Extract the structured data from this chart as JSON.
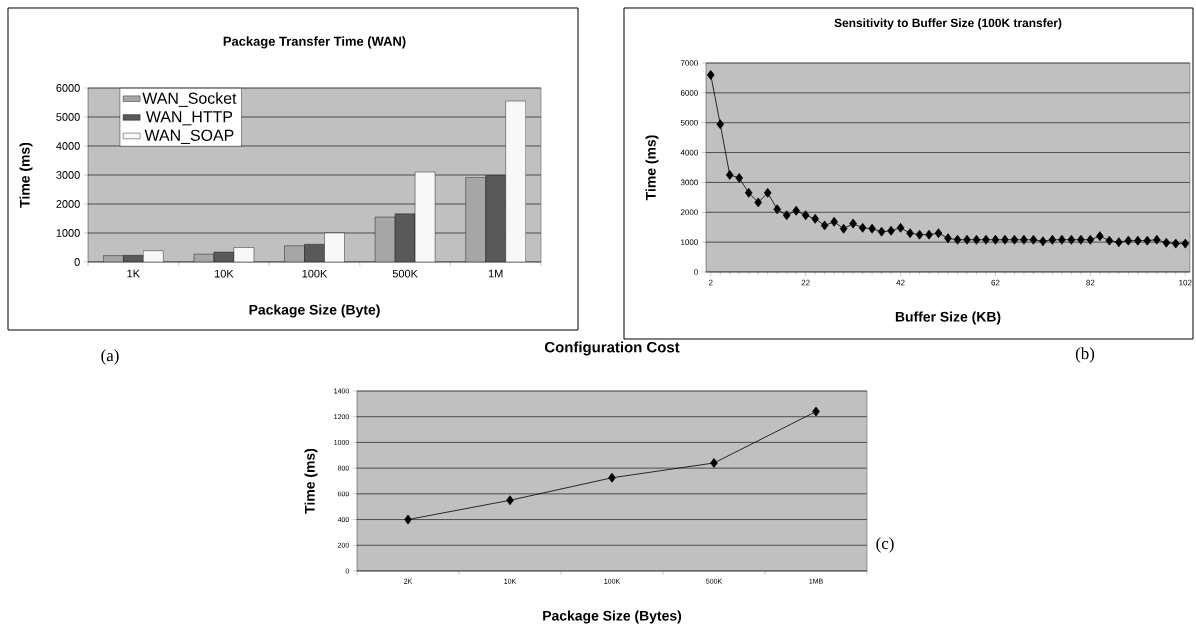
{
  "chart_data": [
    {
      "type": "bar",
      "title": "Package Transfer Time (WAN)",
      "xlabel": "Package Size (Byte)",
      "ylabel": "Time (ms)",
      "categories": [
        "1K",
        "10K",
        "100K",
        "500K",
        "1M"
      ],
      "series": [
        {
          "name": "WAN_Socket",
          "color": "#a6a6a6",
          "values": [
            220,
            270,
            560,
            1550,
            2920
          ]
        },
        {
          "name": "WAN_HTTP",
          "color": "#595959",
          "values": [
            230,
            340,
            610,
            1660,
            2980
          ]
        },
        {
          "name": "WAN_SOAP",
          "color": "#f8f8f8",
          "values": [
            390,
            500,
            1000,
            3100,
            5550
          ]
        }
      ],
      "ylim": [
        0,
        6000
      ],
      "yticks": [
        0,
        1000,
        2000,
        3000,
        4000,
        5000,
        6000
      ],
      "grid": "y",
      "legend": "top left",
      "annotations": [
        "(a)"
      ]
    },
    {
      "type": "line",
      "title": "Sensitivity to Buffer Size (100K transfer)",
      "xlabel": "Buffer Size (KB)",
      "ylabel": "Time (ms)",
      "x": [
        2,
        4,
        6,
        8,
        10,
        12,
        14,
        16,
        18,
        20,
        22,
        24,
        26,
        28,
        30,
        32,
        34,
        36,
        38,
        40,
        42,
        44,
        46,
        48,
        50,
        52,
        54,
        56,
        58,
        60,
        62,
        64,
        66,
        68,
        70,
        72,
        74,
        76,
        78,
        80,
        82,
        84,
        86,
        88,
        90,
        92,
        94,
        96,
        98,
        100,
        102
      ],
      "values": [
        6600,
        4950,
        3250,
        3150,
        2650,
        2330,
        2650,
        2100,
        1900,
        2050,
        1900,
        1780,
        1560,
        1680,
        1450,
        1620,
        1480,
        1450,
        1350,
        1380,
        1480,
        1300,
        1250,
        1250,
        1300,
        1130,
        1080,
        1080,
        1080,
        1080,
        1080,
        1080,
        1080,
        1080,
        1080,
        1030,
        1080,
        1080,
        1080,
        1080,
        1080,
        1200,
        1050,
        1000,
        1050,
        1050,
        1050,
        1080,
        980,
        950,
        950
      ],
      "color": "#000000",
      "marker": "diamond",
      "xlim": [
        1,
        103
      ],
      "xticks": [
        2,
        22,
        42,
        62,
        82,
        102
      ],
      "ylim": [
        0,
        7000
      ],
      "yticks": [
        0,
        1000,
        2000,
        3000,
        4000,
        5000,
        6000,
        7000
      ],
      "grid": "y",
      "annotations": [
        "(b)"
      ]
    },
    {
      "type": "line",
      "title": "Configuration Cost",
      "xlabel": "Package Size (Bytes)",
      "ylabel": "Time (ms)",
      "categories": [
        "2K",
        "10K",
        "100K",
        "500K",
        "1MB"
      ],
      "values": [
        400,
        550,
        725,
        840,
        1240
      ],
      "color": "#000000",
      "marker": "diamond",
      "ylim": [
        0,
        1400
      ],
      "yticks": [
        0,
        200,
        400,
        600,
        800,
        1000,
        1200,
        1400
      ],
      "grid": "y",
      "annotations": [
        "(c)"
      ]
    }
  ]
}
